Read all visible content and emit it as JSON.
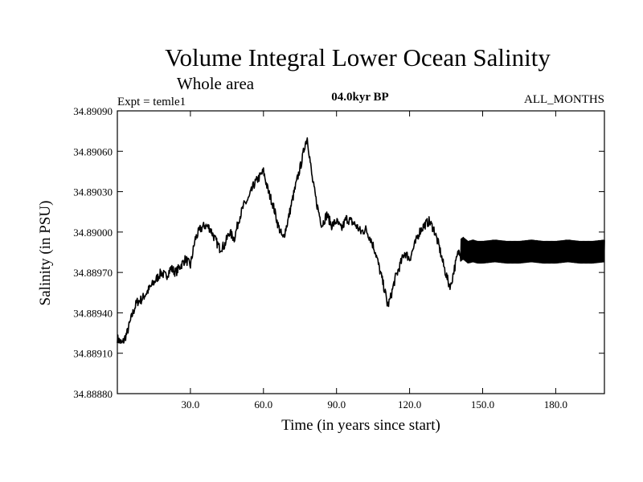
{
  "chart_data": {
    "type": "line",
    "title": "Volume Integral Lower Ocean Salinity",
    "subtitle": "Whole area",
    "annotations": {
      "left": "Expt = temle1",
      "center": "04.0kyr BP",
      "right": "ALL_MONTHS"
    },
    "xlabel": "Time (in years since start)",
    "ylabel": "Salinity (in PSU)",
    "xlim": [
      0,
      200
    ],
    "ylim": [
      34.8888,
      34.8909
    ],
    "xticks": [
      30,
      60,
      90,
      120,
      150,
      180
    ],
    "xtick_labels": [
      "30.0",
      "60.0",
      "90.0",
      "120.0",
      "150.0",
      "180.0"
    ],
    "yticks": [
      34.8888,
      34.8891,
      34.8894,
      34.8897,
      34.89,
      34.8903,
      34.8906,
      34.8909
    ],
    "ytick_labels": [
      "34.88880",
      "34.88910",
      "34.88940",
      "34.88970",
      "34.89000",
      "34.89030",
      "34.89060",
      "34.89090"
    ],
    "grid": false,
    "series": [
      {
        "name": "Salinity",
        "color": "#000000",
        "x": [
          0,
          2,
          4,
          6,
          8,
          10,
          12,
          14,
          16,
          18,
          20,
          22,
          24,
          26,
          28,
          30,
          32,
          34,
          36,
          38,
          40,
          42,
          44,
          46,
          48,
          50,
          52,
          54,
          56,
          58,
          60,
          62,
          64,
          66,
          68,
          70,
          72,
          74,
          76,
          77,
          78,
          80,
          82,
          84,
          86,
          88,
          90,
          92,
          94,
          96,
          98,
          100,
          102,
          104,
          106,
          108,
          110,
          111,
          112,
          114,
          116,
          118,
          120,
          122,
          124,
          126,
          128,
          130,
          132,
          134,
          136,
          137,
          138,
          140,
          142,
          144,
          146,
          148,
          150,
          155,
          160,
          165,
          170,
          175,
          180,
          185,
          190,
          195,
          200
        ],
        "y": [
          34.88921,
          34.88917,
          34.88925,
          34.88938,
          34.88948,
          34.8895,
          34.88955,
          34.8896,
          34.88965,
          34.8897,
          34.88967,
          34.88973,
          34.8897,
          34.88975,
          34.8898,
          34.88975,
          34.88995,
          34.89002,
          34.89005,
          34.89003,
          34.88995,
          34.88988,
          34.8899,
          34.89,
          34.88995,
          34.8901,
          34.8902,
          34.89025,
          34.89035,
          34.8904,
          34.89045,
          34.8903,
          34.8902,
          34.89005,
          34.88995,
          34.89008,
          34.89025,
          34.8904,
          34.89055,
          34.89065,
          34.8907,
          34.8904,
          34.8902,
          34.89005,
          34.89013,
          34.89005,
          34.89008,
          34.89002,
          34.8901,
          34.89008,
          34.89005,
          34.89,
          34.89002,
          34.88995,
          34.88985,
          34.8897,
          34.88955,
          34.88945,
          34.8895,
          34.88965,
          34.88975,
          34.88985,
          34.8898,
          34.8899,
          34.89,
          34.89005,
          34.89008,
          34.89002,
          34.8899,
          34.88975,
          34.88962,
          34.8896,
          34.8897,
          34.88985,
          34.88988,
          34.88985,
          34.88986,
          34.88985,
          34.88985,
          34.88986,
          34.88985,
          34.88985,
          34.88986,
          34.88985,
          34.88985,
          34.88986,
          34.88985,
          34.88985,
          34.88986
        ],
        "oscillation_amplitude_after_x140": 8e-05
      }
    ]
  }
}
